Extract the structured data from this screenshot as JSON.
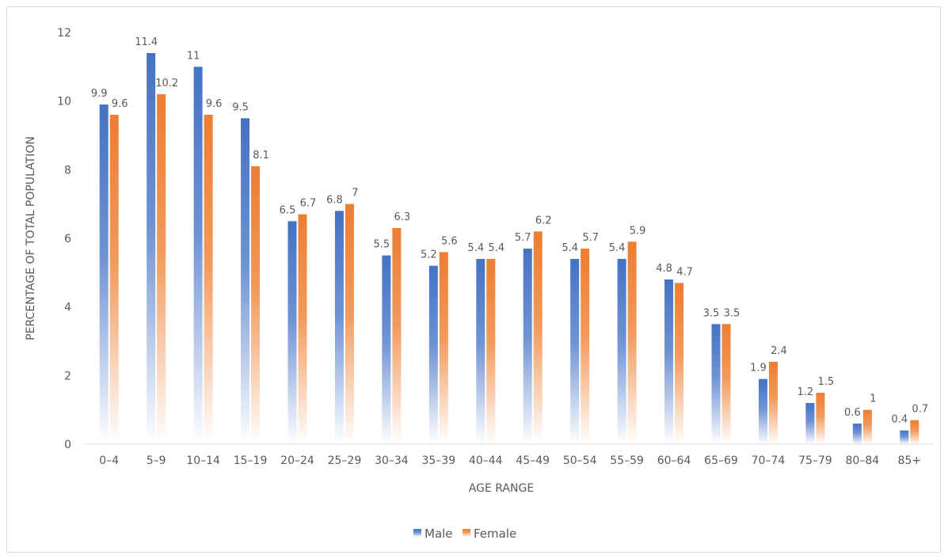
{
  "chart_data": {
    "type": "bar",
    "title": "",
    "xlabel": "AGE RANGE",
    "ylabel": "PERCENTAGE OF TOTAL POPULATION",
    "ylim": [
      0,
      12
    ],
    "yticks": [
      0,
      2,
      4,
      6,
      8,
      10,
      12
    ],
    "grid": false,
    "legend_position": "bottom",
    "categories": [
      "0–4",
      "5–9",
      "10–14",
      "15–19",
      "20–24",
      "25–29",
      "30–34",
      "35–39",
      "40–44",
      "45–49",
      "50–54",
      "55–59",
      "60–64",
      "65–69",
      "70–74",
      "75–79",
      "80–84",
      "85+"
    ],
    "series": [
      {
        "name": "Male",
        "color": "#4472c4",
        "values": [
          9.9,
          11.4,
          11,
          9.5,
          6.5,
          6.8,
          5.5,
          5.2,
          5.4,
          5.7,
          5.4,
          5.4,
          4.8,
          3.5,
          1.9,
          1.2,
          0.6,
          0.4
        ]
      },
      {
        "name": "Female",
        "color": "#ed7d31",
        "values": [
          9.6,
          10.2,
          9.6,
          8.1,
          6.7,
          7,
          6.3,
          5.6,
          5.4,
          6.2,
          5.7,
          5.9,
          4.7,
          3.5,
          2.4,
          1.5,
          1,
          0.7
        ]
      }
    ]
  }
}
